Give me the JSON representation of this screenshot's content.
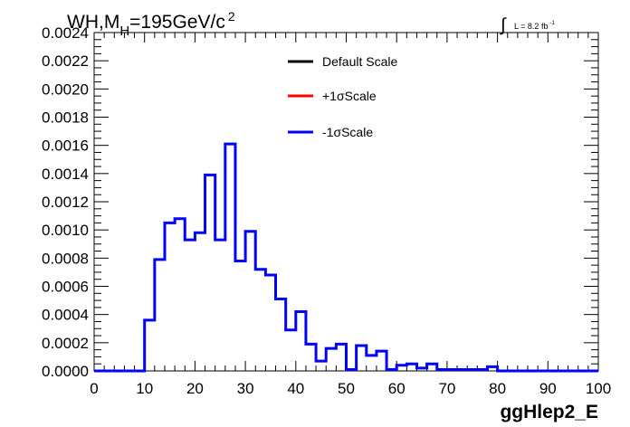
{
  "title": {
    "main": "WH,M",
    "sub": "H",
    "rest": "=195GeV/c",
    "sup": "2"
  },
  "lumi": {
    "symbol": "∫",
    "text": "L = 8.2 fb",
    "sup": "-1"
  },
  "legend": [
    {
      "label": "Default Scale",
      "color": "#000000"
    },
    {
      "label": "+1σScale",
      "color": "#ff0000"
    },
    {
      "label": "-1σScale",
      "color": "#0000ff"
    }
  ],
  "chart_data": {
    "type": "line",
    "xlabel": "ggHlep2_E",
    "ylabel": "",
    "xlim": [
      0,
      100
    ],
    "ylim": [
      0,
      0.0024
    ],
    "xticks": [
      "0",
      "10",
      "20",
      "30",
      "40",
      "50",
      "60",
      "70",
      "80",
      "90",
      "100"
    ],
    "yticks": [
      "0.0000",
      "0.0002",
      "0.0004",
      "0.0006",
      "0.0008",
      "0.0010",
      "0.0012",
      "0.0014",
      "0.0016",
      "0.0018",
      "0.0020",
      "0.0022",
      "0.0024"
    ],
    "bin_edges": [
      0,
      2,
      4,
      6,
      8,
      10,
      12,
      14,
      16,
      18,
      20,
      22,
      24,
      26,
      28,
      30,
      32,
      34,
      36,
      38,
      40,
      42,
      44,
      46,
      48,
      50,
      52,
      54,
      56,
      58,
      60,
      62,
      64,
      66,
      68,
      70,
      72,
      74,
      76,
      78,
      80,
      82,
      84,
      86,
      88,
      90,
      92,
      94,
      96,
      98,
      100
    ],
    "series": [
      {
        "name": "-1σScale",
        "color": "#0000ff",
        "values": [
          0,
          0,
          0,
          0,
          0,
          0.00036,
          0.00079,
          0.00105,
          0.00108,
          0.00093,
          0.00098,
          0.00139,
          0.00093,
          0.00161,
          0.00078,
          0.00099,
          0.00072,
          0.00068,
          0.00051,
          0.00029,
          0.00042,
          0.00019,
          7e-05,
          0.00016,
          0.00019,
          1e-05,
          0.00018,
          0.00011,
          0.00014,
          1e-05,
          4e-05,
          5e-05,
          2e-05,
          5e-05,
          1e-05,
          1e-05,
          1e-05,
          1e-05,
          1e-05,
          3e-05,
          0,
          0,
          0,
          0,
          0,
          0,
          0,
          0,
          0,
          0
        ]
      }
    ]
  }
}
